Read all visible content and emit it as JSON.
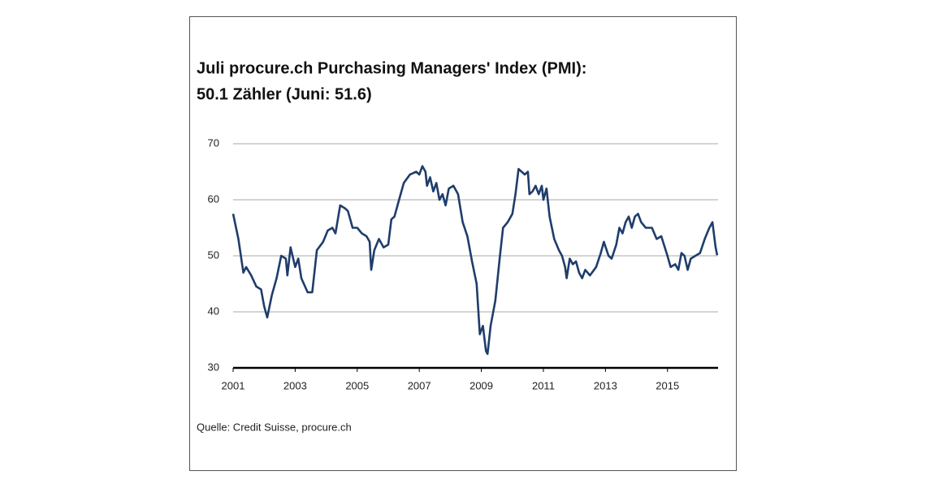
{
  "chart_data": {
    "type": "line",
    "title": [
      "Juli procure.ch Purchasing Managers' Index (PMI):",
      "50.1 Zähler (Juni: 51.6)"
    ],
    "source": "Quelle: Credit Suisse, procure.ch",
    "x": [
      2001.0,
      2001.17,
      2001.33,
      2001.42,
      2001.58,
      2001.75,
      2001.9,
      2002.0,
      2002.1,
      2002.25,
      2002.4,
      2002.55,
      2002.7,
      2002.75,
      2002.85,
      2003.0,
      2003.1,
      2003.2,
      2003.4,
      2003.55,
      2003.7,
      2003.9,
      2004.05,
      2004.2,
      2004.3,
      2004.45,
      2004.6,
      2004.7,
      2004.85,
      2005.0,
      2005.15,
      2005.3,
      2005.4,
      2005.45,
      2005.55,
      2005.7,
      2005.85,
      2006.0,
      2006.1,
      2006.2,
      2006.35,
      2006.5,
      2006.7,
      2006.9,
      2007.0,
      2007.1,
      2007.2,
      2007.25,
      2007.35,
      2007.45,
      2007.55,
      2007.65,
      2007.75,
      2007.85,
      2007.95,
      2008.1,
      2008.25,
      2008.4,
      2008.55,
      2008.7,
      2008.85,
      2008.95,
      2009.05,
      2009.15,
      2009.2,
      2009.3,
      2009.45,
      2009.6,
      2009.7,
      2009.85,
      2010.0,
      2010.1,
      2010.2,
      2010.3,
      2010.4,
      2010.5,
      2010.55,
      2010.65,
      2010.75,
      2010.85,
      2010.95,
      2011.0,
      2011.1,
      2011.2,
      2011.35,
      2011.5,
      2011.6,
      2011.7,
      2011.75,
      2011.85,
      2011.95,
      2012.05,
      2012.15,
      2012.25,
      2012.35,
      2012.5,
      2012.7,
      2012.85,
      2012.95,
      2013.1,
      2013.2,
      2013.35,
      2013.45,
      2013.55,
      2013.65,
      2013.75,
      2013.85,
      2013.95,
      2014.05,
      2014.15,
      2014.3,
      2014.5,
      2014.65,
      2014.8,
      2015.0,
      2015.1,
      2015.25,
      2015.35,
      2015.45,
      2015.55,
      2015.65,
      2015.75,
      2015.9,
      2016.05,
      2016.2,
      2016.35,
      2016.45,
      2016.55,
      2016.6
    ],
    "series": [
      {
        "color": "#1f3d6b",
        "values": [
          57.5,
          53,
          47,
          48,
          46.5,
          44.5,
          44,
          41,
          39,
          43,
          46,
          50,
          49.5,
          46.5,
          51.5,
          48,
          49.5,
          46,
          43.5,
          43.5,
          51,
          52.5,
          54.5,
          55,
          54,
          59,
          58.5,
          58,
          55,
          55,
          54,
          53.5,
          52.5,
          47.5,
          51,
          53,
          51.5,
          52,
          56.5,
          57,
          60,
          63,
          64.5,
          65,
          64.5,
          66,
          65,
          62.5,
          64,
          61.5,
          63,
          60,
          61,
          59,
          62,
          62.5,
          61,
          56,
          53.5,
          49,
          45,
          36,
          37.5,
          33,
          32.5,
          37.5,
          42,
          50,
          55,
          56,
          57.5,
          61,
          65.5,
          65,
          64.5,
          65,
          61,
          61.5,
          62.5,
          61,
          62.5,
          60,
          62,
          57,
          53,
          51,
          50,
          48,
          46,
          49.5,
          48.5,
          49,
          47,
          46,
          47.5,
          46.5,
          48,
          50.5,
          52.5,
          50,
          49.5,
          52,
          55,
          54,
          56,
          57,
          55,
          57,
          57.5,
          56,
          55,
          55,
          53,
          53.5,
          50,
          48,
          48.5,
          47.5,
          50.5,
          50,
          47.5,
          49.5,
          50,
          50.5,
          53,
          55,
          56,
          51.6,
          50.1
        ]
      }
    ],
    "xlim": [
      2001,
      2016.63
    ],
    "xticks": [
      2001,
      2003,
      2005,
      2007,
      2009,
      2011,
      2013,
      2015
    ],
    "ylim": [
      30,
      70
    ],
    "yticks": [
      30,
      40,
      50,
      60,
      70
    ],
    "grid": true
  }
}
